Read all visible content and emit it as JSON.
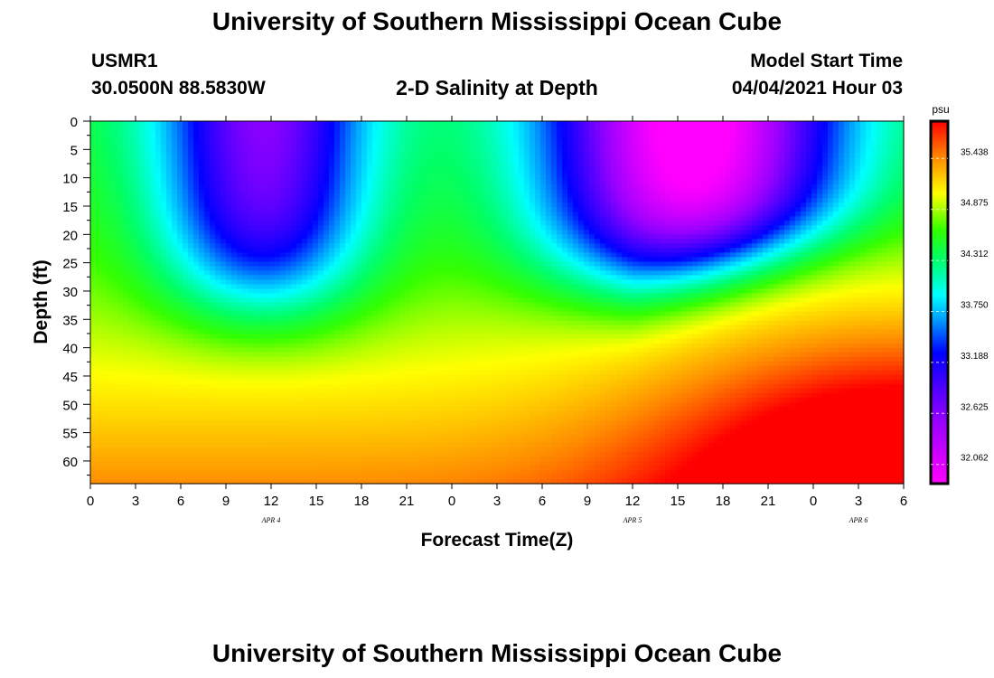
{
  "header": {
    "title": "University of Southern Mississippi Ocean Cube",
    "station": "USMR1",
    "coords": "30.0500N  88.5830W",
    "subtitle": "2-D Salinity at Depth",
    "model_start_label": "Model Start Time",
    "model_start_value": "04/04/2021 Hour 03"
  },
  "footer": {
    "title": "University of Southern Mississippi Ocean Cube"
  },
  "chart_data": {
    "type": "heatmap",
    "title": "2-D Salinity at Depth",
    "xlabel": "Forecast Time(Z)",
    "ylabel": "Depth (ft)",
    "x_tick_labels": [
      "0",
      "3",
      "6",
      "9",
      "12",
      "15",
      "18",
      "21",
      "0",
      "3",
      "6",
      "9",
      "12",
      "15",
      "18",
      "21",
      "0",
      "3",
      "6"
    ],
    "x_range_hours": [
      0,
      54
    ],
    "date_labels": [
      {
        "label": "APR 4",
        "hour": 12
      },
      {
        "label": "APR 5",
        "hour": 36
      },
      {
        "label": "APR 6",
        "hour": 51
      }
    ],
    "y_tick_labels": [
      "0",
      "5",
      "10",
      "15",
      "20",
      "25",
      "30",
      "35",
      "40",
      "45",
      "50",
      "55",
      "60"
    ],
    "y_range_ft": [
      0,
      64
    ],
    "colorbar": {
      "unit": "psu",
      "tick_labels": [
        "35.438",
        "34.875",
        "34.312",
        "33.750",
        "33.188",
        "32.625",
        "32.062"
      ],
      "ticks": [
        35.438,
        34.875,
        34.312,
        33.75,
        33.188,
        32.625,
        32.062
      ],
      "range": [
        31.85,
        35.85
      ]
    },
    "features": [
      {
        "description": "fresh lens",
        "center_hour": 11.5,
        "max_depth_ft": 34,
        "min_psu": 33.0
      },
      {
        "description": "fresh lens",
        "center_hour": 40.0,
        "max_depth_ft": 28,
        "min_psu": 32.1
      },
      {
        "description": "saline bottom",
        "center_hour": 54,
        "depth_ft": 64,
        "max_psu": 35.8
      }
    ],
    "colors": {
      "frame": "#000000",
      "colorbar_border": "#000000"
    }
  }
}
